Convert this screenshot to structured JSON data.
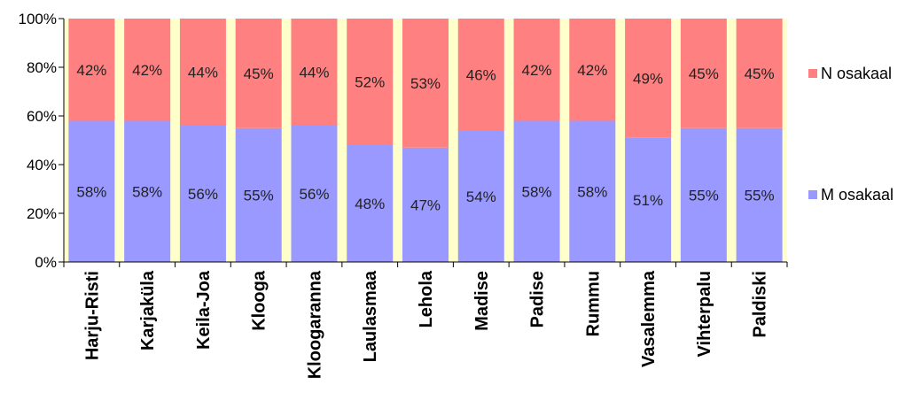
{
  "chart_data": {
    "type": "bar",
    "stacked": true,
    "percent": true,
    "categories": [
      "Harju-Risti",
      "Karjaküla",
      "Keila-Joa",
      "Klooga",
      "Kloogaranna",
      "Laulasmaa",
      "Lehola",
      "Madise",
      "Padise",
      "Rummu",
      "Vasalemma",
      "Vihterpalu",
      "Paldiski"
    ],
    "series": [
      {
        "name": "M osakaal",
        "color": "#9999ff",
        "values": [
          58,
          58,
          56,
          55,
          56,
          48,
          47,
          54,
          58,
          58,
          51,
          55,
          55
        ],
        "labels": [
          "58%",
          "58%",
          "56%",
          "55%",
          "56%",
          "48%",
          "47%",
          "54%",
          "58%",
          "58%",
          "51%",
          "55%",
          "55%"
        ]
      },
      {
        "name": "N osakaal",
        "color": "#ff8080",
        "values": [
          42,
          42,
          44,
          45,
          44,
          52,
          53,
          46,
          42,
          42,
          49,
          45,
          45
        ],
        "labels": [
          "42%",
          "42%",
          "44%",
          "45%",
          "44%",
          "52%",
          "53%",
          "46%",
          "42%",
          "42%",
          "49%",
          "45%",
          "45%"
        ]
      }
    ],
    "y_ticks": [
      "0%",
      "20%",
      "40%",
      "60%",
      "80%",
      "100%"
    ],
    "ylim": [
      0,
      100
    ],
    "plot_background": "#ffffcc",
    "legend_position": "right",
    "grid": false
  }
}
